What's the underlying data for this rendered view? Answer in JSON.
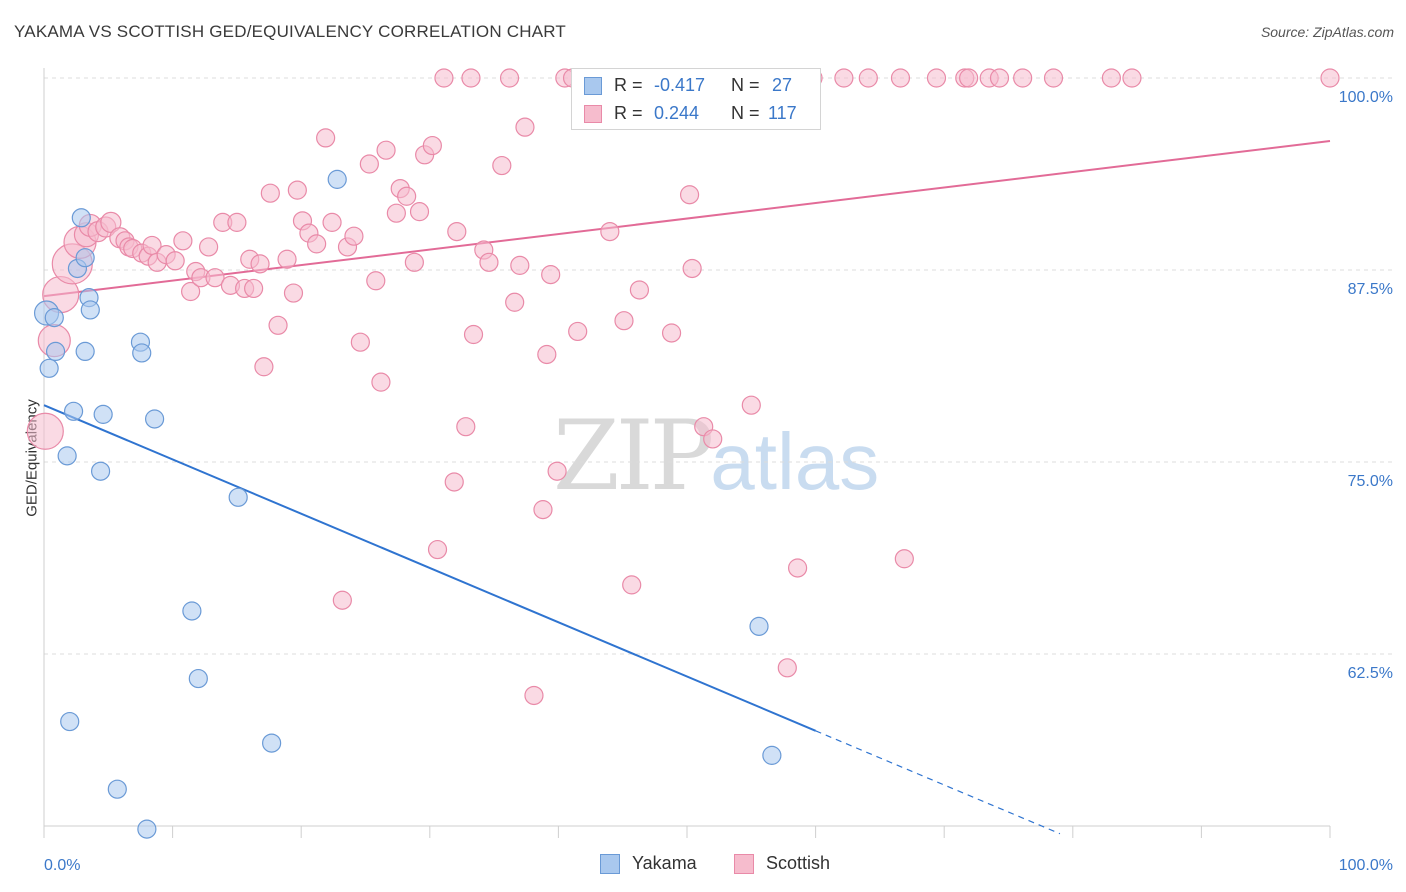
{
  "title": "YAKAMA VS SCOTTISH GED/EQUIVALENCY CORRELATION CHART",
  "source": "Source: ZipAtlas.com",
  "watermark": {
    "zip": "ZIP",
    "atlas": "atlas"
  },
  "stats": {
    "yakama": {
      "r_label": "R =",
      "r_value": "-0.417",
      "n_label": "N =",
      "n_value": "27"
    },
    "scottish": {
      "r_label": "R =",
      "r_value": "0.244",
      "n_label": "N =",
      "n_value": "117"
    }
  },
  "legend": {
    "yakama": "Yakama",
    "scottish": "Scottish"
  },
  "colors": {
    "yakama_fill": "#a9c8ee",
    "yakama_stroke": "#6a9ad6",
    "yakama_line": "#2f74d0",
    "scottish_fill": "#f6bccd",
    "scottish_stroke": "#e98aa8",
    "scottish_line": "#e26b97",
    "tick_label": "#3b78c9",
    "grid": "#dcdcdc"
  },
  "chart_data": {
    "type": "scatter",
    "xlabel": "",
    "ylabel": "GED/Equivalency",
    "xlim": [
      0,
      100
    ],
    "ylim": [
      51,
      100.5
    ],
    "x_tick_labels": [
      "0.0%",
      "100.0%"
    ],
    "y_ticks": [
      62.5,
      75.0,
      87.5,
      100.0
    ],
    "y_tick_labels": [
      "62.5%",
      "75.0%",
      "87.5%",
      "100.0%"
    ],
    "grid": "horizontal dashed",
    "legend_position": "bottom-center",
    "series": [
      {
        "name": "Yakama",
        "trend": {
          "x0": 0,
          "y0": 78.7,
          "x1": 60,
          "y1": 57.5,
          "dashed_to_x": 79,
          "dashed_to_y": 50.8
        },
        "points": [
          [
            0.2,
            84.7,
            12
          ],
          [
            0.4,
            81.1,
            9
          ],
          [
            0.8,
            84.4,
            9
          ],
          [
            0.9,
            82.2,
            9
          ],
          [
            1.8,
            75.4,
            9
          ],
          [
            2.3,
            78.3,
            9
          ],
          [
            2.6,
            87.6,
            9
          ],
          [
            2.9,
            90.9,
            9
          ],
          [
            3.2,
            88.3,
            9
          ],
          [
            3.2,
            82.2,
            9
          ],
          [
            3.5,
            85.7,
            9
          ],
          [
            3.6,
            84.9,
            9
          ],
          [
            4.4,
            74.4,
            9
          ],
          [
            4.6,
            78.1,
            9
          ],
          [
            7.5,
            82.8,
            9
          ],
          [
            7.6,
            82.1,
            9
          ],
          [
            8.6,
            77.8,
            9
          ],
          [
            11.5,
            65.3,
            9
          ],
          [
            12.0,
            60.9,
            9
          ],
          [
            15.1,
            72.7,
            9
          ],
          [
            17.7,
            56.7,
            9
          ],
          [
            22.8,
            93.4,
            9
          ],
          [
            2.0,
            58.1,
            9
          ],
          [
            5.7,
            53.7,
            9
          ],
          [
            8.0,
            51.1,
            9
          ],
          [
            55.6,
            64.3,
            9
          ],
          [
            56.6,
            55.9,
            9
          ]
        ]
      },
      {
        "name": "Scottish",
        "trend": {
          "x0": 0,
          "y0": 85.8,
          "x1": 100,
          "y1": 95.9
        },
        "points": [
          [
            0.1,
            77.0,
            18
          ],
          [
            0.8,
            82.9,
            16
          ],
          [
            1.3,
            85.9,
            18
          ],
          [
            2.2,
            87.9,
            20
          ],
          [
            2.8,
            89.3,
            16
          ],
          [
            3.3,
            89.8,
            12
          ],
          [
            3.6,
            90.4,
            11
          ],
          [
            4.2,
            90.0,
            10
          ],
          [
            4.8,
            90.3,
            10
          ],
          [
            5.2,
            90.6,
            10
          ],
          [
            5.9,
            89.6,
            10
          ],
          [
            6.3,
            89.4,
            9
          ],
          [
            6.6,
            89.0,
            9
          ],
          [
            6.9,
            88.9,
            9
          ],
          [
            7.6,
            88.6,
            9
          ],
          [
            8.1,
            88.4,
            9
          ],
          [
            8.4,
            89.1,
            9
          ],
          [
            8.8,
            88.0,
            9
          ],
          [
            9.5,
            88.5,
            9
          ],
          [
            10.2,
            88.1,
            9
          ],
          [
            10.8,
            89.4,
            9
          ],
          [
            11.4,
            86.1,
            9
          ],
          [
            11.8,
            87.4,
            9
          ],
          [
            12.2,
            87.0,
            9
          ],
          [
            12.8,
            89.0,
            9
          ],
          [
            13.3,
            87.0,
            9
          ],
          [
            13.9,
            90.6,
            9
          ],
          [
            14.5,
            86.5,
            9
          ],
          [
            15.0,
            90.6,
            9
          ],
          [
            15.6,
            86.3,
            9
          ],
          [
            16.0,
            88.2,
            9
          ],
          [
            16.3,
            86.3,
            9
          ],
          [
            16.8,
            87.9,
            9
          ],
          [
            17.1,
            81.2,
            9
          ],
          [
            17.6,
            92.5,
            9
          ],
          [
            18.2,
            83.9,
            9
          ],
          [
            18.9,
            88.2,
            9
          ],
          [
            19.4,
            86.0,
            9
          ],
          [
            19.7,
            92.7,
            9
          ],
          [
            20.1,
            90.7,
            9
          ],
          [
            20.6,
            89.9,
            9
          ],
          [
            21.2,
            89.2,
            9
          ],
          [
            21.9,
            96.1,
            9
          ],
          [
            22.4,
            90.6,
            9
          ],
          [
            23.2,
            66.0,
            9
          ],
          [
            23.6,
            89.0,
            9
          ],
          [
            24.1,
            89.7,
            9
          ],
          [
            24.6,
            82.8,
            9
          ],
          [
            25.3,
            94.4,
            9
          ],
          [
            25.8,
            86.8,
            9
          ],
          [
            26.2,
            80.2,
            9
          ],
          [
            26.6,
            95.3,
            9
          ],
          [
            27.4,
            91.2,
            9
          ],
          [
            27.7,
            92.8,
            9
          ],
          [
            28.2,
            92.3,
            9
          ],
          [
            28.8,
            88.0,
            9
          ],
          [
            29.2,
            91.3,
            9
          ],
          [
            29.6,
            95.0,
            9
          ],
          [
            30.2,
            95.6,
            9
          ],
          [
            30.6,
            69.3,
            9
          ],
          [
            31.1,
            100.0,
            9
          ],
          [
            31.9,
            73.7,
            9
          ],
          [
            32.1,
            90.0,
            9
          ],
          [
            32.8,
            77.3,
            9
          ],
          [
            33.2,
            100.0,
            9
          ],
          [
            33.4,
            83.3,
            9
          ],
          [
            34.2,
            88.8,
            9
          ],
          [
            34.6,
            88.0,
            9
          ],
          [
            35.6,
            94.3,
            9
          ],
          [
            36.2,
            100.0,
            9
          ],
          [
            36.6,
            85.4,
            9
          ],
          [
            37.0,
            87.8,
            9
          ],
          [
            37.4,
            96.8,
            9
          ],
          [
            38.1,
            59.8,
            9
          ],
          [
            38.8,
            71.9,
            9
          ],
          [
            39.1,
            82.0,
            9
          ],
          [
            39.4,
            87.2,
            9
          ],
          [
            39.9,
            74.4,
            9
          ],
          [
            40.5,
            100.0,
            9
          ],
          [
            41.1,
            100.0,
            9
          ],
          [
            41.5,
            83.5,
            9
          ],
          [
            42.3,
            100.0,
            9
          ],
          [
            42.7,
            100.0,
            9
          ],
          [
            43.4,
            100.0,
            9
          ],
          [
            44.0,
            90.0,
            9
          ],
          [
            44.5,
            100.0,
            9
          ],
          [
            45.1,
            84.2,
            9
          ],
          [
            45.7,
            67.0,
            9
          ],
          [
            46.3,
            86.2,
            9
          ],
          [
            47.4,
            100.0,
            9
          ],
          [
            48.2,
            100.0,
            9
          ],
          [
            48.8,
            83.4,
            9
          ],
          [
            49.6,
            100.0,
            9
          ],
          [
            50.2,
            92.4,
            9
          ],
          [
            50.4,
            87.6,
            9
          ],
          [
            50.9,
            100.0,
            9
          ],
          [
            51.3,
            77.3,
            9
          ],
          [
            52.0,
            76.5,
            9
          ],
          [
            53.1,
            100.0,
            9
          ],
          [
            54.1,
            100.0,
            9
          ],
          [
            55.0,
            78.7,
            9
          ],
          [
            57.5,
            100.0,
            9
          ],
          [
            57.8,
            61.6,
            9
          ],
          [
            58.6,
            68.1,
            9
          ],
          [
            59.8,
            100.0,
            9
          ],
          [
            62.2,
            100.0,
            9
          ],
          [
            64.1,
            100.0,
            9
          ],
          [
            66.6,
            100.0,
            9
          ],
          [
            66.9,
            68.7,
            9
          ],
          [
            69.4,
            100.0,
            9
          ],
          [
            71.6,
            100.0,
            9
          ],
          [
            71.9,
            100.0,
            9
          ],
          [
            73.5,
            100.0,
            9
          ],
          [
            74.3,
            100.0,
            9
          ],
          [
            76.1,
            100.0,
            9
          ],
          [
            78.5,
            100.0,
            9
          ],
          [
            83.0,
            100.0,
            9
          ],
          [
            84.6,
            100.0,
            9
          ],
          [
            100.0,
            100.0,
            9
          ]
        ]
      }
    ]
  }
}
